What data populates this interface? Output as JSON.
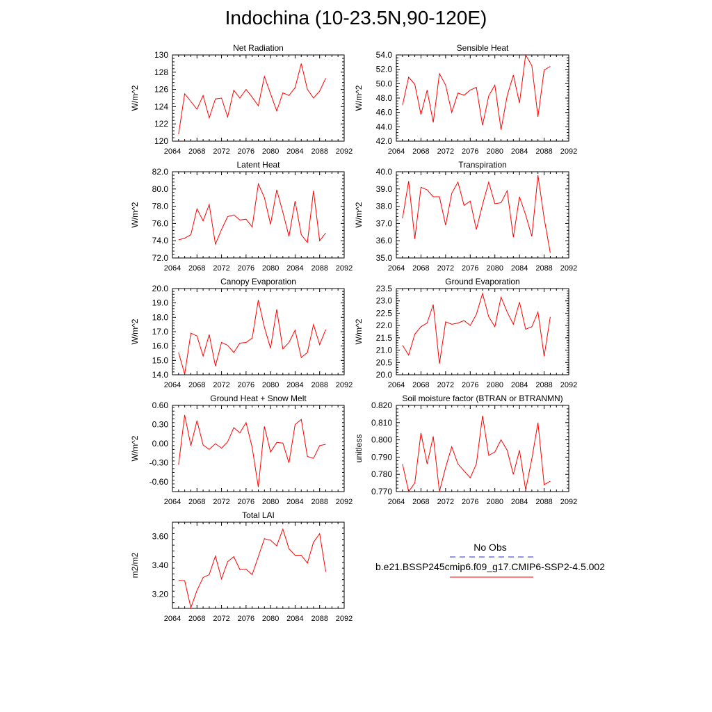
{
  "title": "Indochina (10-23.5N,90-120E)",
  "legend": {
    "obs_label": "No Obs",
    "obs_color": "#2b2bd6",
    "run_label": "b.e21.BSSP245cmip6.f09_g17.CMIP6-SSP2-4.5.002",
    "run_color": "#ff0000"
  },
  "chart_data": [
    {
      "type": "line",
      "title": "Net Radiation",
      "ylabel": "W/m^2",
      "xlim": [
        2064,
        2092
      ],
      "ylim": [
        120,
        130
      ],
      "xticks": [
        2064,
        2068,
        2072,
        2076,
        2080,
        2084,
        2088,
        2092
      ],
      "yticks": [
        120,
        122,
        124,
        126,
        128,
        130
      ],
      "ytick_labels": [
        "120",
        "122",
        "124",
        "126",
        "128",
        "130"
      ],
      "x": [
        2065,
        2066,
        2067,
        2068,
        2069,
        2070,
        2071,
        2072,
        2073,
        2074,
        2075,
        2076,
        2077,
        2078,
        2079,
        2080,
        2081,
        2082,
        2083,
        2084,
        2085,
        2086,
        2087,
        2088,
        2089
      ],
      "values": [
        120.8,
        125.5,
        124.6,
        123.7,
        125.3,
        122.7,
        124.9,
        125.0,
        122.8,
        125.9,
        125.0,
        126.0,
        125.1,
        124.1,
        127.5,
        125.5,
        123.5,
        125.6,
        125.3,
        126.2,
        129.0,
        126.0,
        125.0,
        125.8,
        127.3
      ]
    },
    {
      "type": "line",
      "title": "Sensible Heat",
      "ylabel": "W/m^2",
      "xlim": [
        2064,
        2092
      ],
      "ylim": [
        42,
        54
      ],
      "xticks": [
        2064,
        2068,
        2072,
        2076,
        2080,
        2084,
        2088,
        2092
      ],
      "yticks": [
        42,
        44,
        46,
        48,
        50,
        52,
        54
      ],
      "ytick_labels": [
        "42.0",
        "44.0",
        "46.0",
        "48.0",
        "50.0",
        "52.0",
        "54.0"
      ],
      "x": [
        2065,
        2066,
        2067,
        2068,
        2069,
        2070,
        2071,
        2072,
        2073,
        2074,
        2075,
        2076,
        2077,
        2078,
        2079,
        2080,
        2081,
        2082,
        2083,
        2084,
        2085,
        2086,
        2087,
        2088,
        2089
      ],
      "values": [
        47.0,
        50.9,
        49.9,
        45.7,
        49.1,
        44.6,
        51.4,
        49.8,
        46.0,
        48.7,
        48.4,
        49.1,
        49.5,
        44.2,
        48.3,
        49.8,
        43.6,
        48.3,
        51.2,
        47.3,
        54.0,
        52.5,
        45.4,
        51.9,
        52.4
      ]
    },
    {
      "type": "line",
      "title": "Latent Heat",
      "ylabel": "W/m^2",
      "xlim": [
        2064,
        2092
      ],
      "ylim": [
        72,
        82
      ],
      "xticks": [
        2064,
        2068,
        2072,
        2076,
        2080,
        2084,
        2088,
        2092
      ],
      "yticks": [
        72,
        74,
        76,
        78,
        80,
        82
      ],
      "ytick_labels": [
        "72.0",
        "74.0",
        "76.0",
        "78.0",
        "80.0",
        "82.0"
      ],
      "x": [
        2065,
        2066,
        2067,
        2068,
        2069,
        2070,
        2071,
        2072,
        2073,
        2074,
        2075,
        2076,
        2077,
        2078,
        2079,
        2080,
        2081,
        2082,
        2083,
        2084,
        2085,
        2086,
        2087,
        2088,
        2089
      ],
      "values": [
        74.1,
        74.3,
        74.7,
        77.7,
        76.3,
        78.2,
        73.6,
        75.3,
        76.8,
        77.0,
        76.4,
        76.5,
        75.6,
        80.6,
        79.0,
        75.9,
        79.9,
        77.3,
        74.5,
        78.6,
        74.7,
        73.8,
        79.8,
        74.0,
        74.9
      ]
    },
    {
      "type": "line",
      "title": "Transpiration",
      "ylabel": "W/m^2",
      "xlim": [
        2064,
        2092
      ],
      "ylim": [
        35,
        40
      ],
      "xticks": [
        2064,
        2068,
        2072,
        2076,
        2080,
        2084,
        2088,
        2092
      ],
      "yticks": [
        35,
        36,
        37,
        38,
        39,
        40
      ],
      "ytick_labels": [
        "35.0",
        "36.0",
        "37.0",
        "38.0",
        "39.0",
        "40.0"
      ],
      "x": [
        2065,
        2066,
        2067,
        2068,
        2069,
        2070,
        2071,
        2072,
        2073,
        2074,
        2075,
        2076,
        2077,
        2078,
        2079,
        2080,
        2081,
        2082,
        2083,
        2084,
        2085,
        2086,
        2087,
        2088,
        2089
      ],
      "values": [
        37.3,
        39.45,
        36.1,
        39.1,
        38.95,
        38.55,
        38.55,
        36.9,
        38.75,
        39.4,
        38.05,
        38.3,
        36.65,
        38.1,
        39.4,
        38.15,
        38.2,
        38.9,
        36.2,
        38.55,
        37.5,
        36.25,
        39.8,
        37.3,
        35.3
      ]
    },
    {
      "type": "line",
      "title": "Canopy Evaporation",
      "ylabel": "W/m^2",
      "xlim": [
        2064,
        2092
      ],
      "ylim": [
        14,
        20
      ],
      "xticks": [
        2064,
        2068,
        2072,
        2076,
        2080,
        2084,
        2088,
        2092
      ],
      "yticks": [
        14,
        15,
        16,
        17,
        18,
        19,
        20
      ],
      "ytick_labels": [
        "14.0",
        "15.0",
        "16.0",
        "17.0",
        "18.0",
        "19.0",
        "20.0"
      ],
      "x": [
        2065,
        2066,
        2067,
        2068,
        2069,
        2070,
        2071,
        2072,
        2073,
        2074,
        2075,
        2076,
        2077,
        2078,
        2079,
        2080,
        2081,
        2082,
        2083,
        2084,
        2085,
        2086,
        2087,
        2088,
        2089
      ],
      "values": [
        15.55,
        14.05,
        16.9,
        16.7,
        15.3,
        16.8,
        14.6,
        16.25,
        16.05,
        15.55,
        16.2,
        16.25,
        16.55,
        19.2,
        17.3,
        15.85,
        18.55,
        15.8,
        16.25,
        17.1,
        15.2,
        15.55,
        17.5,
        16.1,
        17.15
      ]
    },
    {
      "type": "line",
      "title": "Ground Evaporation",
      "ylabel": "W/m^2",
      "xlim": [
        2064,
        2092
      ],
      "ylim": [
        20,
        23.5
      ],
      "xticks": [
        2064,
        2068,
        2072,
        2076,
        2080,
        2084,
        2088,
        2092
      ],
      "yticks": [
        20,
        20.5,
        21,
        21.5,
        22,
        22.5,
        23,
        23.5
      ],
      "ytick_labels": [
        "20.0",
        "20.5",
        "21.0",
        "21.5",
        "22.0",
        "22.5",
        "23.0",
        "23.5"
      ],
      "x": [
        2065,
        2066,
        2067,
        2068,
        2069,
        2070,
        2071,
        2072,
        2073,
        2074,
        2075,
        2076,
        2077,
        2078,
        2079,
        2080,
        2081,
        2082,
        2083,
        2084,
        2085,
        2086,
        2087,
        2088,
        2089
      ],
      "values": [
        21.2,
        20.8,
        21.65,
        21.95,
        22.1,
        22.85,
        20.45,
        22.15,
        22.05,
        22.1,
        22.2,
        22.0,
        22.45,
        23.3,
        22.35,
        21.95,
        23.15,
        22.55,
        22.05,
        22.95,
        21.85,
        21.95,
        22.55,
        20.75,
        22.35
      ]
    },
    {
      "type": "line",
      "title": "Ground Heat + Snow Melt",
      "ylabel": "W/m^2",
      "xlim": [
        2064,
        2092
      ],
      "ylim": [
        -0.75,
        0.6
      ],
      "xticks": [
        2064,
        2068,
        2072,
        2076,
        2080,
        2084,
        2088,
        2092
      ],
      "yticks": [
        -0.6,
        -0.3,
        0,
        0.3,
        0.6
      ],
      "ytick_labels": [
        "-0.60",
        "-0.30",
        "0.00",
        "0.30",
        "0.60"
      ],
      "x": [
        2065,
        2066,
        2067,
        2068,
        2069,
        2070,
        2071,
        2072,
        2073,
        2074,
        2075,
        2076,
        2077,
        2078,
        2079,
        2080,
        2081,
        2082,
        2083,
        2084,
        2085,
        2086,
        2087,
        2088,
        2089
      ],
      "values": [
        -0.33,
        0.45,
        -0.03,
        0.36,
        -0.02,
        -0.09,
        0.0,
        -0.07,
        0.03,
        0.25,
        0.17,
        0.33,
        -0.06,
        -0.68,
        0.27,
        -0.13,
        0.02,
        0.01,
        -0.3,
        0.3,
        0.38,
        -0.2,
        -0.23,
        -0.03,
        -0.01
      ]
    },
    {
      "type": "line",
      "title": "Soil moisture factor (BTRAN or BTRANMN)",
      "ylabel": "unitless",
      "xlim": [
        2064,
        2092
      ],
      "ylim": [
        0.77,
        0.82
      ],
      "xticks": [
        2064,
        2068,
        2072,
        2076,
        2080,
        2084,
        2088,
        2092
      ],
      "yticks": [
        0.77,
        0.78,
        0.79,
        0.8,
        0.81,
        0.82
      ],
      "ytick_labels": [
        "0.770",
        "0.780",
        "0.790",
        "0.800",
        "0.810",
        "0.820"
      ],
      "x": [
        2065,
        2066,
        2067,
        2068,
        2069,
        2070,
        2071,
        2072,
        2073,
        2074,
        2075,
        2076,
        2077,
        2078,
        2079,
        2080,
        2081,
        2082,
        2083,
        2084,
        2085,
        2086,
        2087,
        2088,
        2089
      ],
      "values": [
        0.786,
        0.77,
        0.775,
        0.804,
        0.786,
        0.802,
        0.77,
        0.784,
        0.796,
        0.786,
        0.782,
        0.778,
        0.786,
        0.814,
        0.791,
        0.793,
        0.8,
        0.794,
        0.78,
        0.794,
        0.771,
        0.789,
        0.81,
        0.774,
        0.776
      ]
    },
    {
      "type": "line",
      "title": "Total LAI",
      "ylabel": "m2/m2",
      "xlim": [
        2064,
        2092
      ],
      "ylim": [
        3.1,
        3.7
      ],
      "xticks": [
        2064,
        2068,
        2072,
        2076,
        2080,
        2084,
        2088,
        2092
      ],
      "yticks": [
        3.2,
        3.4,
        3.6
      ],
      "ytick_labels": [
        "3.20",
        "3.40",
        "3.60"
      ],
      "x": [
        2065,
        2066,
        2067,
        2068,
        2069,
        2070,
        2071,
        2072,
        2073,
        2074,
        2075,
        2076,
        2077,
        2078,
        2079,
        2080,
        2081,
        2082,
        2083,
        2084,
        2085,
        2086,
        2087,
        2088,
        2089
      ],
      "values": [
        3.295,
        3.293,
        3.105,
        3.225,
        3.315,
        3.335,
        3.465,
        3.305,
        3.425,
        3.46,
        3.37,
        3.372,
        3.335,
        3.46,
        3.585,
        3.575,
        3.535,
        3.652,
        3.515,
        3.47,
        3.47,
        3.415,
        3.56,
        3.62,
        3.355
      ]
    }
  ]
}
